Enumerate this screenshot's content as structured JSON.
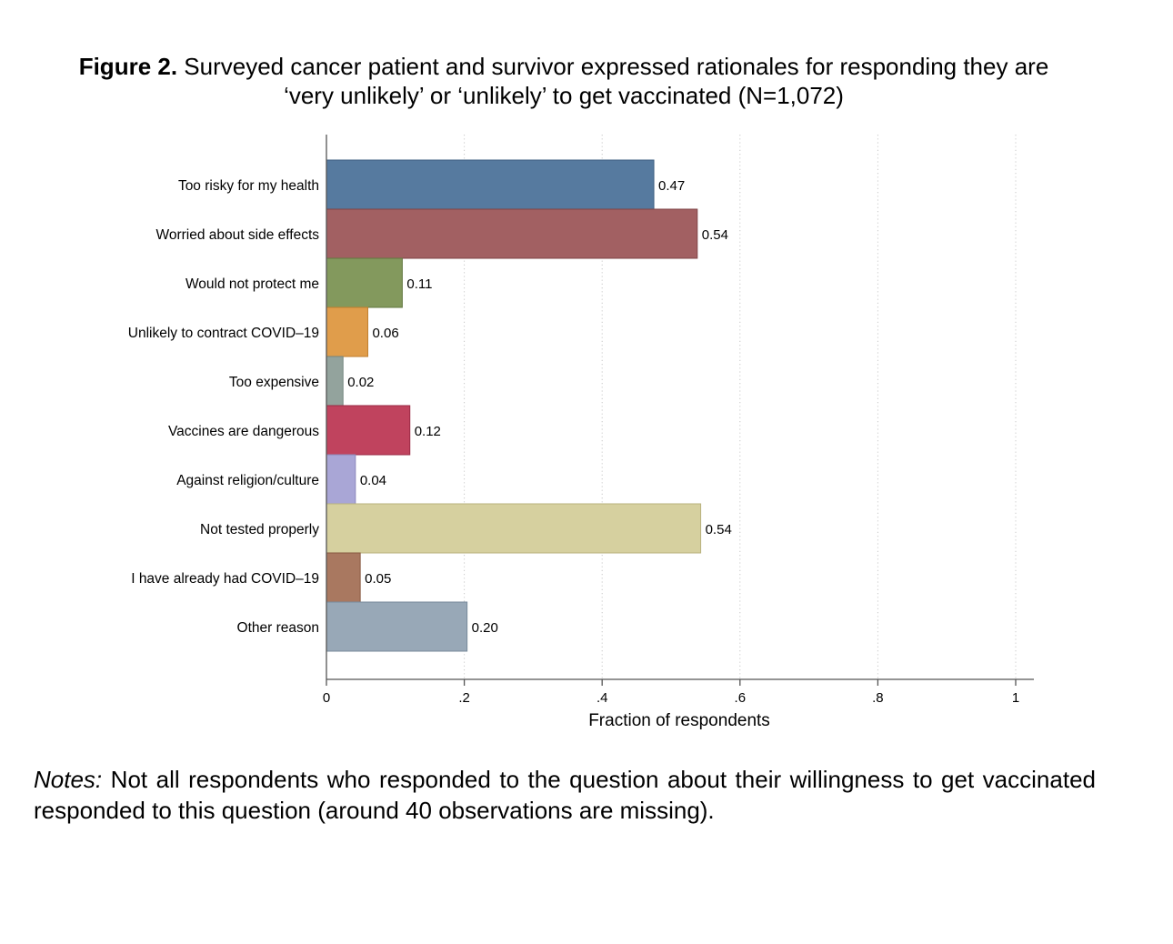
{
  "figure": {
    "label": "Figure 2.",
    "title_line1": "Surveyed cancer patient and survivor expressed rationales for responding they are",
    "title_line2": "‘very unlikely’ or ‘unlikely’ to get vaccinated (N=1,072)"
  },
  "chart_data": {
    "type": "bar",
    "orientation": "horizontal",
    "categories": [
      "Too risky for my health",
      "Worried about side effects",
      "Would not protect me",
      "Unlikely to contract COVID–19",
      "Too expensive",
      "Vaccines are dangerous",
      "Against religion/culture",
      "Not tested properly",
      "I have already had COVID–19",
      "Other reason"
    ],
    "values": [
      0.475,
      0.538,
      0.11,
      0.06,
      0.024,
      0.121,
      0.042,
      0.543,
      0.049,
      0.204
    ],
    "data_labels": [
      "0.47",
      "0.54",
      "0.11",
      "0.06",
      "0.02",
      "0.12",
      "0.04",
      "0.54",
      "0.05",
      "0.20"
    ],
    "colors": [
      "#567a9f",
      "#a26062",
      "#83995d",
      "#e09d4b",
      "#93a39d",
      "#c0435e",
      "#a9a6d6",
      "#d6d09f",
      "#a97860",
      "#98a8b7"
    ],
    "border_colors": [
      "#3e5f80",
      "#7f4547",
      "#62773f",
      "#bf7d2c",
      "#74847e",
      "#9a2a44",
      "#8b88ba",
      "#b9b27e",
      "#87583f",
      "#788a9b"
    ],
    "xlabel": "Fraction of respondents",
    "xlim": [
      0,
      1
    ],
    "xticks": [
      0,
      0.2,
      0.4,
      0.6,
      0.8,
      1
    ],
    "xtick_labels": [
      "0",
      ".2",
      ".4",
      ".6",
      ".8",
      "1"
    ],
    "grid": "vertical dotted"
  },
  "notes": {
    "label": "Notes:",
    "text": "Not all respondents who responded to the question about their willingness to get vaccinated responded to this question (around 40 observations are missing)."
  }
}
